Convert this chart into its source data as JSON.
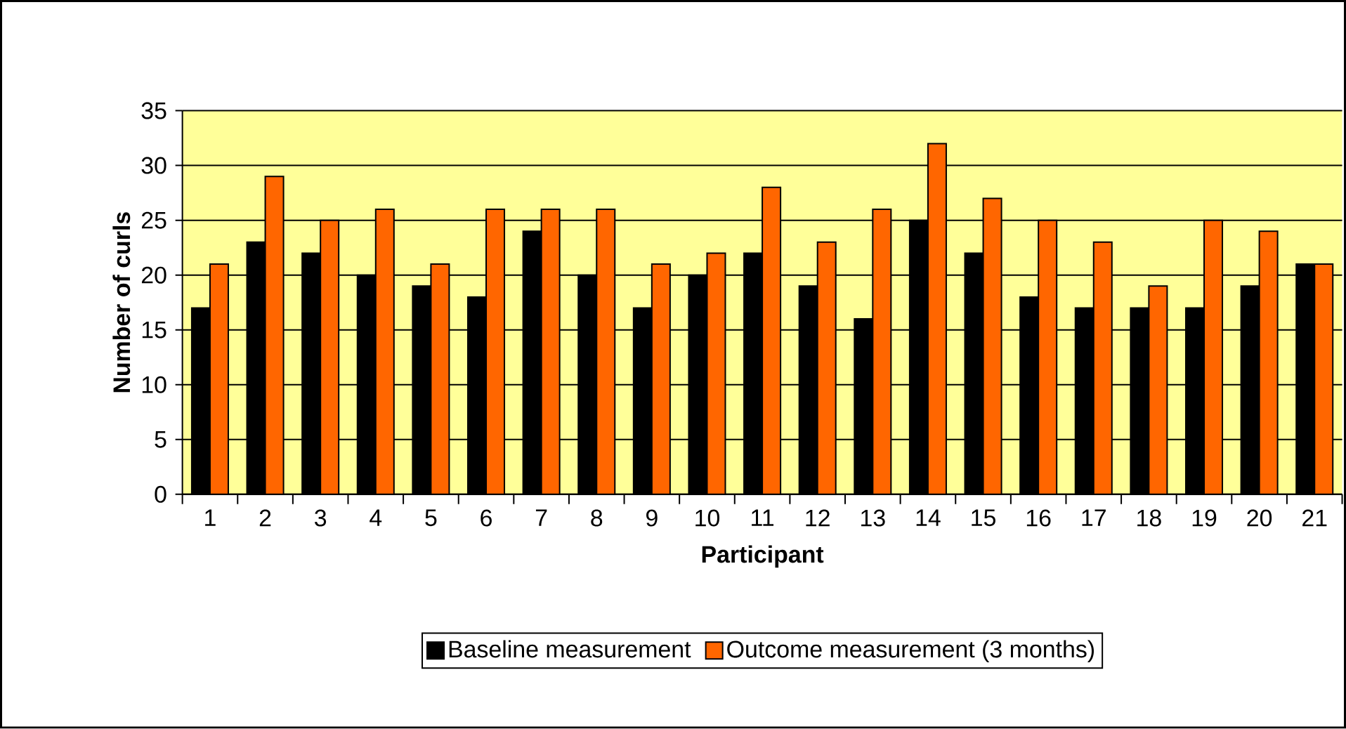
{
  "chart_data": {
    "type": "bar",
    "xlabel": "Participant",
    "ylabel": "Number of curls",
    "categories": [
      "1",
      "2",
      "3",
      "4",
      "5",
      "6",
      "7",
      "8",
      "9",
      "10",
      "11",
      "12",
      "13",
      "14",
      "15",
      "16",
      "17",
      "18",
      "19",
      "20",
      "21"
    ],
    "series": [
      {
        "name": "Baseline measurement",
        "color": "#000000",
        "values": [
          17,
          23,
          22,
          20,
          19,
          18,
          24,
          20,
          17,
          20,
          22,
          19,
          16,
          25,
          22,
          18,
          17,
          17,
          17,
          19,
          21
        ]
      },
      {
        "name": "Outcome measurement (3 months)",
        "color": "#ff6600",
        "values": [
          21,
          29,
          25,
          26,
          21,
          26,
          26,
          26,
          21,
          22,
          28,
          23,
          26,
          32,
          27,
          25,
          23,
          19,
          25,
          24,
          21
        ]
      }
    ],
    "ylim": [
      0,
      35
    ],
    "yticks": [
      0,
      5,
      10,
      15,
      20,
      25,
      30,
      35
    ],
    "grid": "y",
    "legend": "bottom"
  }
}
